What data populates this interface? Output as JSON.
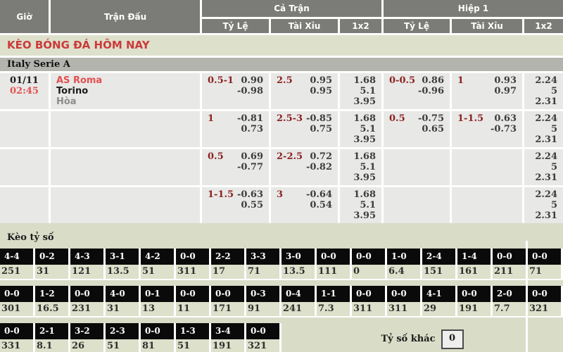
{
  "title": "KÈO BÓNG ĐÁ HÔM NAY",
  "league": "Italy Serie A",
  "header": {
    "time": "Giờ",
    "match": "Trận Đấu",
    "full_match": "Cả Trận",
    "first_half": "Hiệp 1",
    "sub": [
      "Tỷ Lệ",
      "Tài Xỉu",
      "1x2"
    ]
  },
  "match": {
    "date": "01/11",
    "time": "02:45",
    "home": "AS Roma",
    "away": "Torino",
    "draw": "Hòa"
  },
  "odds_rows": [
    {
      "ft_handicap": {
        "label": "0.5-1",
        "v1": "0.90",
        "v2": "-0.98"
      },
      "ft_overunder": {
        "label": "2.5",
        "v1": "0.95",
        "v2": "0.95"
      },
      "ft_1x2": [
        "1.68",
        "5.1",
        "3.95"
      ],
      "h1_handicap": {
        "label": "0-0.5",
        "v1": "0.86",
        "v2": "-0.96"
      },
      "h1_overunder": {
        "label": "1",
        "v1": "0.93",
        "v2": "0.97"
      },
      "h1_1x2": [
        "2.24",
        "5",
        "2.31"
      ]
    },
    {
      "ft_handicap": {
        "label": "1",
        "v1": "-0.81",
        "v2": "0.73"
      },
      "ft_overunder": {
        "label": "2.5-3",
        "v1": "-0.85",
        "v2": "0.75"
      },
      "ft_1x2": [
        "1.68",
        "5.1",
        "3.95"
      ],
      "h1_handicap": {
        "label": "0.5",
        "v1": "-0.75",
        "v2": "0.65"
      },
      "h1_overunder": {
        "label": "1-1.5",
        "v1": "0.63",
        "v2": "-0.73"
      },
      "h1_1x2": [
        "2.24",
        "5",
        "2.31"
      ]
    },
    {
      "ft_handicap": {
        "label": "0.5",
        "v1": "0.69",
        "v2": "-0.77"
      },
      "ft_overunder": {
        "label": "2-2.5",
        "v1": "0.72",
        "v2": "-0.82"
      },
      "ft_1x2": [
        "1.68",
        "5.1",
        "3.95"
      ],
      "h1_handicap": null,
      "h1_overunder": null,
      "h1_1x2": [
        "2.24",
        "5",
        "2.31"
      ]
    },
    {
      "ft_handicap": {
        "label": "1-1.5",
        "v1": "-0.63",
        "v2": "0.55"
      },
      "ft_overunder": {
        "label": "3",
        "v1": "-0.64",
        "v2": "0.54"
      },
      "ft_1x2": [
        "1.68",
        "5.1",
        "3.95"
      ],
      "h1_handicap": null,
      "h1_overunder": null,
      "h1_1x2": [
        "2.24",
        "5",
        "2.31"
      ]
    }
  ],
  "score_section": {
    "title": "Kèo tỷ số",
    "rows": [
      [
        {
          "score": "4-4",
          "odds": "251"
        },
        {
          "score": "0-2",
          "odds": "31"
        },
        {
          "score": "4-3",
          "odds": "121"
        },
        {
          "score": "3-1",
          "odds": "13.5"
        },
        {
          "score": "4-2",
          "odds": "51"
        },
        {
          "score": "0-0",
          "odds": "311"
        },
        {
          "score": "2-2",
          "odds": "17"
        },
        {
          "score": "3-3",
          "odds": "71"
        },
        {
          "score": "3-0",
          "odds": "13.5"
        },
        {
          "score": "0-0",
          "odds": "111"
        },
        {
          "score": "0-0",
          "odds": "0"
        },
        {
          "score": "1-0",
          "odds": "6.4"
        },
        {
          "score": "2-4",
          "odds": "151"
        },
        {
          "score": "1-4",
          "odds": "161"
        },
        {
          "score": "0-0",
          "odds": "211"
        },
        {
          "score": "0-0",
          "odds": "71"
        }
      ],
      [
        {
          "score": "0-0",
          "odds": "301"
        },
        {
          "score": "1-2",
          "odds": "16.5"
        },
        {
          "score": "0-0",
          "odds": "231"
        },
        {
          "score": "4-0",
          "odds": "31"
        },
        {
          "score": "0-1",
          "odds": "13"
        },
        {
          "score": "0-0",
          "odds": "11"
        },
        {
          "score": "0-0",
          "odds": "171"
        },
        {
          "score": "0-3",
          "odds": "91"
        },
        {
          "score": "0-4",
          "odds": "241"
        },
        {
          "score": "1-1",
          "odds": "7.3"
        },
        {
          "score": "0-0",
          "odds": "311"
        },
        {
          "score": "0-0",
          "odds": "311"
        },
        {
          "score": "4-1",
          "odds": "29"
        },
        {
          "score": "0-0",
          "odds": "191"
        },
        {
          "score": "2-0",
          "odds": "7.7"
        },
        {
          "score": "0-0",
          "odds": "321"
        }
      ],
      [
        {
          "score": "0-0",
          "odds": "331"
        },
        {
          "score": "2-1",
          "odds": "8.1"
        },
        {
          "score": "3-2",
          "odds": "26"
        },
        {
          "score": "2-3",
          "odds": "51"
        },
        {
          "score": "0-0",
          "odds": "81"
        },
        {
          "score": "1-3",
          "odds": "51"
        },
        {
          "score": "3-4",
          "odds": "191"
        },
        {
          "score": "0-0",
          "odds": "321"
        }
      ]
    ],
    "other_label": "Tỷ số khác",
    "other_value": "0"
  },
  "colors": {
    "accent_red": "#cb3a3a",
    "team_red": "#e25050",
    "handicap_maroon": "#8a1f1f",
    "header_gray": "#7b7b78",
    "league_gray": "#b4b4af",
    "cell_gray": "#e8e8e6",
    "page_green": "#d9dcc7",
    "score_box_black": "#0a0a0a"
  }
}
